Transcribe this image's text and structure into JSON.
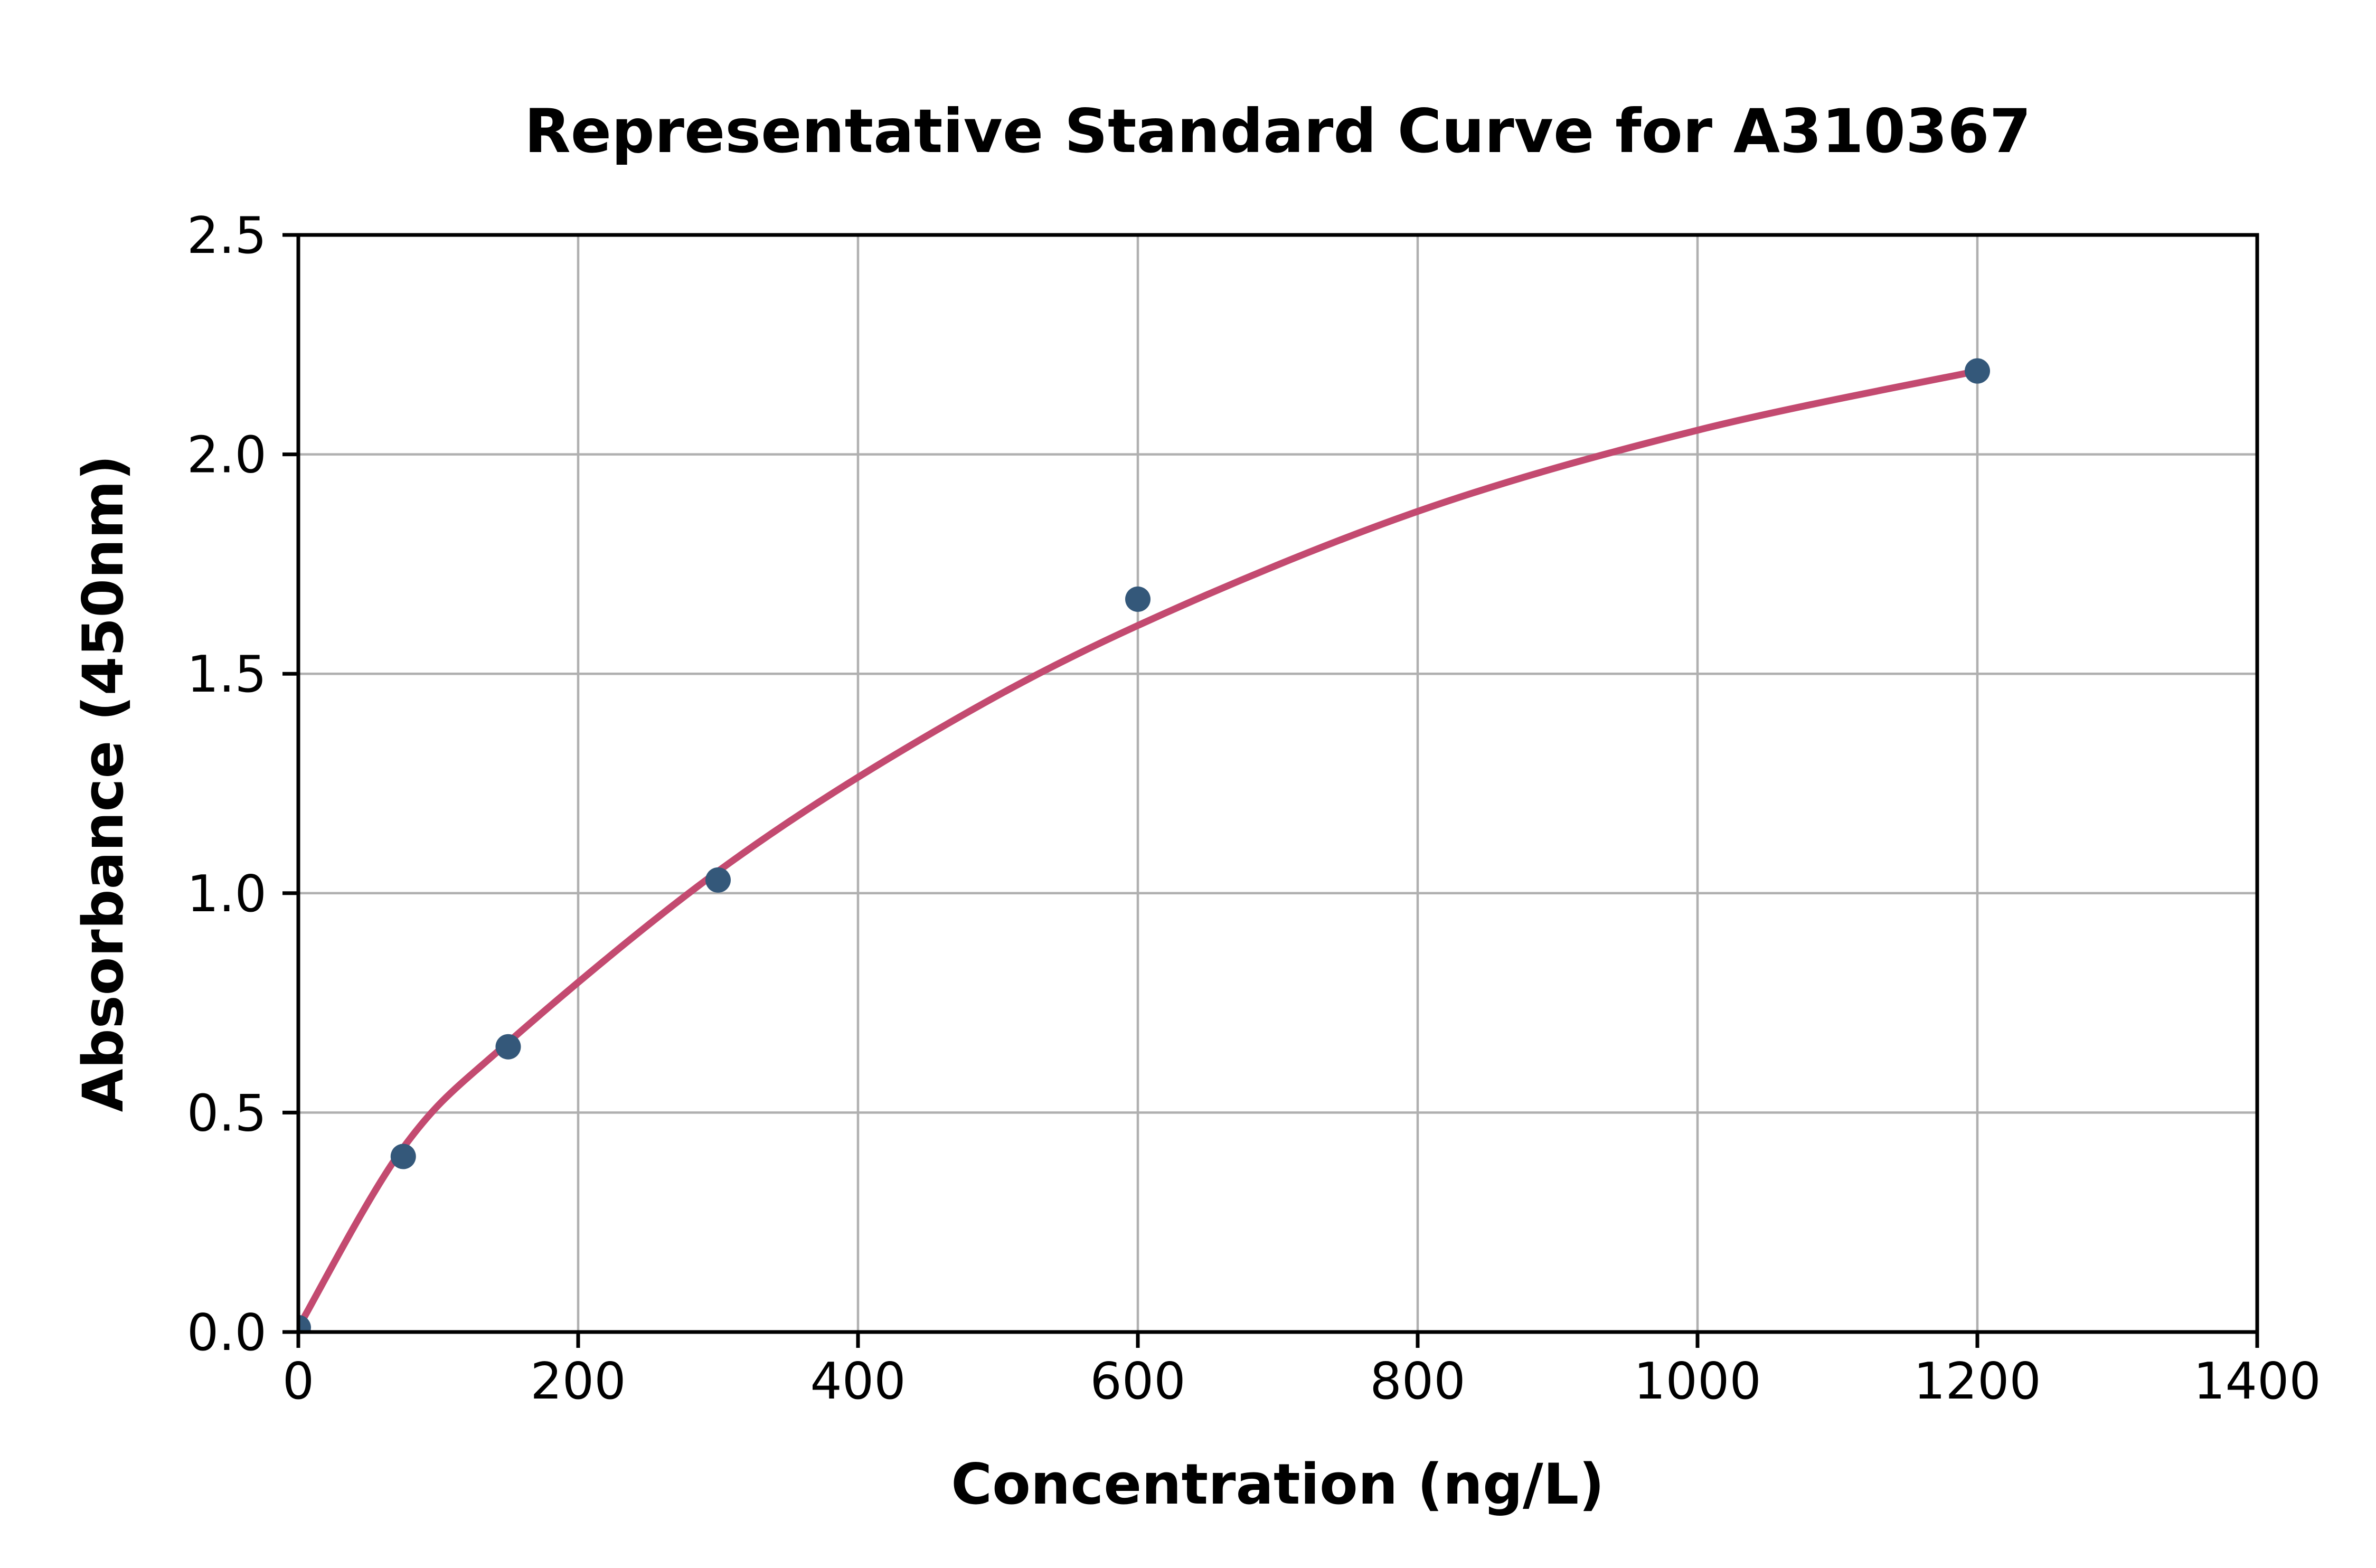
{
  "page": {
    "background_color": "#ffffff"
  },
  "chart_data": {
    "type": "scatter",
    "title": "Representative Standard Curve for A310367",
    "xlabel": "Concentration (ng/L)",
    "ylabel": "Absorbance (450nm)",
    "xlim": [
      0,
      1400
    ],
    "ylim": [
      0.0,
      2.5
    ],
    "grid": true,
    "legend": false,
    "xtick_values": [
      0,
      200,
      400,
      600,
      800,
      1000,
      1200,
      1400
    ],
    "xtick_labels": [
      "0",
      "200",
      "400",
      "600",
      "800",
      "1000",
      "1200",
      "1400"
    ],
    "ytick_values": [
      0.0,
      0.5,
      1.0,
      1.5,
      2.0,
      2.5
    ],
    "ytick_labels": [
      "0.0",
      "0.5",
      "1.0",
      "1.5",
      "2.0",
      "2.5"
    ],
    "points": [
      {
        "x": 0,
        "y": 0.01
      },
      {
        "x": 75,
        "y": 0.4
      },
      {
        "x": 150,
        "y": 0.65
      },
      {
        "x": 300,
        "y": 1.03
      },
      {
        "x": 600,
        "y": 1.67
      },
      {
        "x": 1200,
        "y": 2.19
      }
    ],
    "fit_curve": {
      "x": [
        0,
        75,
        150,
        300,
        450,
        600,
        800,
        1000,
        1200
      ],
      "y": [
        0.01,
        0.42,
        0.66,
        1.05,
        1.36,
        1.61,
        1.87,
        2.055,
        2.19
      ]
    },
    "colors": {
      "curve": "#c34a70",
      "marker": "#34587a",
      "grid": "#b0b0b0",
      "axis": "#000000",
      "text": "#000000",
      "background": "#ffffff"
    }
  }
}
